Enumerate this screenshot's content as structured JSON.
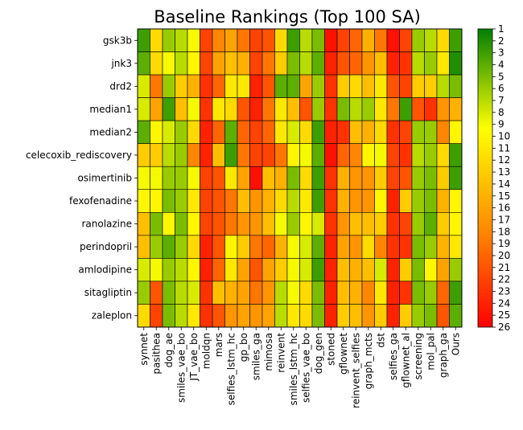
{
  "chart_data": {
    "type": "heatmap",
    "title": "Baseline Rankings (Top 100 SA)",
    "rows": [
      "gsk3b",
      "jnk3",
      "drd2",
      "median1",
      "median2",
      "celecoxib_rediscovery",
      "osimertinib",
      "fexofenadine",
      "ranolazine",
      "perindopril",
      "amlodipine",
      "sitagliptin",
      "zaleplon"
    ],
    "columns": [
      "synnet",
      "pasithea",
      "dog_ae",
      "smiles_vae_bo",
      "JT_vae_bo",
      "moldqn",
      "mars",
      "selfies_lstm_hc",
      "gp_bo",
      "smiles_ga",
      "mimosa",
      "reinvent",
      "smiles_lstm_hc",
      "selfies_vae_bo",
      "dog_gen",
      "stoned",
      "gflownet",
      "reinvent_selfies",
      "graph_mcts",
      "dst",
      "selfies_ga",
      "gflownet_al",
      "screening",
      "mol_pal",
      "graph_ga",
      "Ours"
    ],
    "colorbar": {
      "min": 1,
      "max": 26,
      "ticks": [
        1,
        2,
        3,
        4,
        5,
        6,
        7,
        8,
        9,
        10,
        11,
        12,
        13,
        14,
        15,
        16,
        17,
        18,
        19,
        20,
        21,
        22,
        23,
        24,
        25,
        26
      ],
      "colors": [
        "#008000",
        "#ffff00",
        "#ff8c00",
        "#ff0000"
      ]
    },
    "values": [
      [
        3,
        12,
        6,
        7,
        9,
        22,
        18,
        16,
        19,
        22,
        21,
        12,
        3,
        7,
        5,
        25,
        22,
        20,
        15,
        19,
        25,
        22,
        6,
        7,
        12,
        3
      ],
      [
        4,
        12,
        9,
        7,
        10,
        22,
        16,
        14,
        15,
        22,
        19,
        13,
        5,
        7,
        4,
        24,
        21,
        20,
        17,
        14,
        24,
        23,
        7,
        6,
        11,
        2
      ],
      [
        8,
        19,
        6,
        13,
        15,
        23,
        20,
        11,
        11,
        24,
        21,
        4,
        4,
        16,
        6,
        23,
        13,
        12,
        14,
        11,
        21,
        22,
        13,
        13,
        7,
        5
      ],
      [
        8,
        16,
        3,
        14,
        9,
        23,
        11,
        12,
        21,
        24,
        19,
        11,
        14,
        21,
        6,
        23,
        5,
        7,
        6,
        11,
        19,
        3,
        21,
        23,
        17,
        15
      ],
      [
        4,
        10,
        8,
        6,
        12,
        24,
        20,
        4,
        20,
        22,
        20,
        11,
        8,
        12,
        3,
        24,
        23,
        14,
        15,
        12,
        23,
        22,
        6,
        6,
        18,
        10
      ],
      [
        13,
        13,
        7,
        6,
        18,
        24,
        14,
        3,
        19,
        22,
        22,
        19,
        10,
        9,
        4,
        25,
        20,
        18,
        10,
        9,
        22,
        23,
        7,
        6,
        12,
        3
      ],
      [
        9,
        9,
        6,
        6,
        9,
        22,
        21,
        11,
        16,
        25,
        14,
        15,
        5,
        12,
        3,
        23,
        15,
        17,
        17,
        13,
        22,
        21,
        6,
        5,
        13,
        3
      ],
      [
        10,
        10,
        5,
        6,
        11,
        22,
        21,
        19,
        14,
        17,
        15,
        12,
        7,
        11,
        3,
        23,
        15,
        17,
        17,
        10,
        24,
        13,
        6,
        5,
        15,
        10
      ],
      [
        14,
        5,
        10,
        5,
        10,
        22,
        21,
        19,
        17,
        17,
        14,
        9,
        6,
        10,
        8,
        23,
        17,
        14,
        14,
        13,
        23,
        22,
        6,
        4,
        13,
        10
      ],
      [
        14,
        6,
        4,
        6,
        12,
        24,
        21,
        10,
        13,
        19,
        20,
        15,
        9,
        8,
        4,
        24,
        16,
        17,
        12,
        18,
        23,
        23,
        5,
        6,
        15,
        11
      ],
      [
        8,
        9,
        6,
        7,
        10,
        24,
        20,
        11,
        16,
        21,
        16,
        13,
        9,
        8,
        3,
        24,
        14,
        15,
        14,
        8,
        24,
        13,
        5,
        10,
        16,
        6
      ],
      [
        6,
        21,
        5,
        7,
        8,
        23,
        14,
        15,
        16,
        19,
        17,
        7,
        9,
        12,
        5,
        24,
        14,
        15,
        18,
        11,
        24,
        23,
        5,
        6,
        20,
        3
      ],
      [
        12,
        22,
        5,
        7,
        11,
        23,
        21,
        17,
        16,
        17,
        16,
        7,
        11,
        12,
        5,
        24,
        13,
        14,
        17,
        13,
        24,
        13,
        6,
        5,
        21,
        4
      ]
    ]
  }
}
